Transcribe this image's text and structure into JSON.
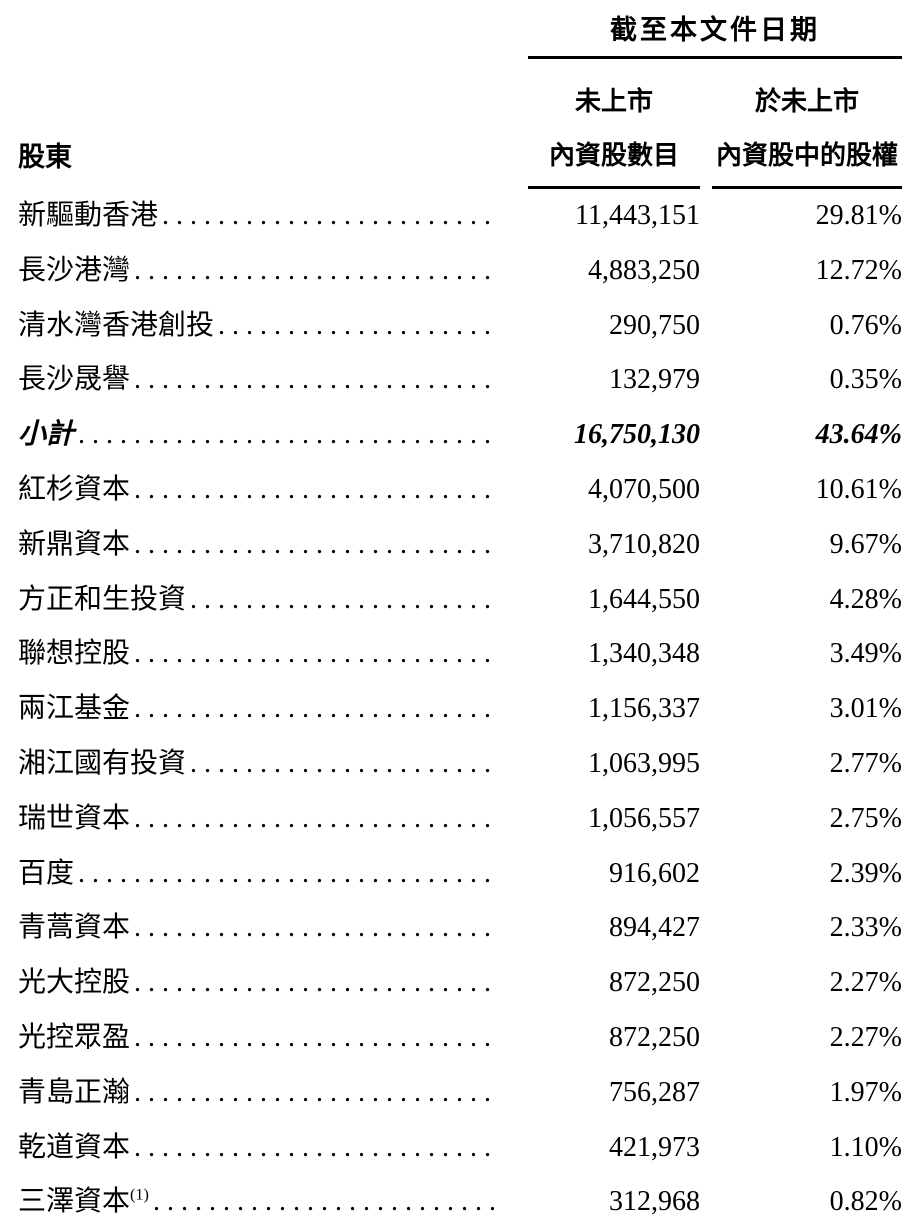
{
  "colors": {
    "text": "#000000",
    "background": "#ffffff",
    "rule": "#000000"
  },
  "table": {
    "spanner": "截至本文件日期",
    "row_header": "股東",
    "col1_line1": "未上市",
    "col1_line2": "內資股數目",
    "col2_line1": "於未上市",
    "col2_line2": "內資股中的股權",
    "rows": [
      {
        "name": "新驅動香港",
        "shares": "11,443,151",
        "pct": "29.81%",
        "bold": false
      },
      {
        "name": "長沙港灣",
        "shares": "4,883,250",
        "pct": "12.72%",
        "bold": false
      },
      {
        "name": "清水灣香港創投",
        "shares": "290,750",
        "pct": "0.76%",
        "bold": false
      },
      {
        "name": "長沙晟譽",
        "shares": "132,979",
        "pct": "0.35%",
        "bold": false
      },
      {
        "name": "小計",
        "shares": "16,750,130",
        "pct": "43.64%",
        "bold": true
      },
      {
        "name": "紅杉資本",
        "shares": "4,070,500",
        "pct": "10.61%",
        "bold": false
      },
      {
        "name": "新鼎資本",
        "shares": "3,710,820",
        "pct": "9.67%",
        "bold": false
      },
      {
        "name": "方正和生投資",
        "shares": "1,644,550",
        "pct": "4.28%",
        "bold": false
      },
      {
        "name": "聯想控股",
        "shares": "1,340,348",
        "pct": "3.49%",
        "bold": false
      },
      {
        "name": "兩江基金",
        "shares": "1,156,337",
        "pct": "3.01%",
        "bold": false
      },
      {
        "name": "湘江國有投資",
        "shares": "1,063,995",
        "pct": "2.77%",
        "bold": false
      },
      {
        "name": "瑞世資本",
        "shares": "1,056,557",
        "pct": "2.75%",
        "bold": false
      },
      {
        "name": "百度",
        "shares": "916,602",
        "pct": "2.39%",
        "bold": false
      },
      {
        "name": "青蒿資本",
        "shares": "894,427",
        "pct": "2.33%",
        "bold": false
      },
      {
        "name": "光大控股",
        "shares": "872,250",
        "pct": "2.27%",
        "bold": false
      },
      {
        "name": "光控眾盈",
        "shares": "872,250",
        "pct": "2.27%",
        "bold": false
      },
      {
        "name": "青島正瀚",
        "shares": "756,287",
        "pct": "1.97%",
        "bold": false
      },
      {
        "name": "乾道資本",
        "shares": "421,973",
        "pct": "1.10%",
        "bold": false
      },
      {
        "name": "三澤資本",
        "sup": "(1)",
        "shares": "312,968",
        "pct": "0.82%",
        "bold": false
      }
    ]
  }
}
